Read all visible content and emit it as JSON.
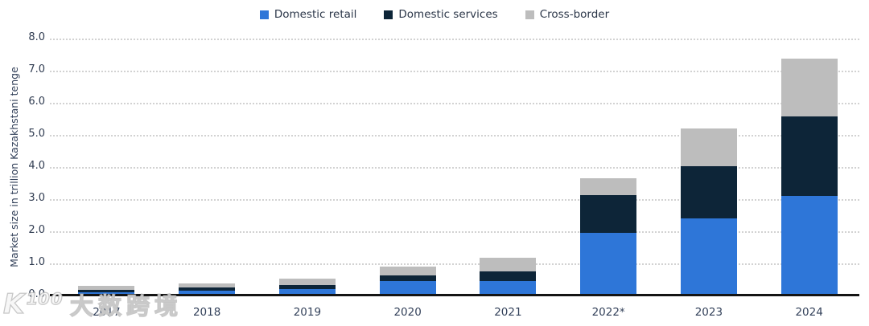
{
  "watermark": {
    "logo": "K¹⁰⁰",
    "text": "大数跨境"
  },
  "colors": {
    "retail_blue": "#2e76d8",
    "services_navy": "#0d2538",
    "crossborder_gray": "#bdbdbd",
    "axis_line": "#141414",
    "gridline": "#d2d2d2",
    "label_text": "#33415a"
  },
  "y_axis": {
    "title": "Market size in trillion Kazakhstani tenge",
    "ticks": [
      "8.0",
      "7.0",
      "6.0",
      "5.0",
      "4.0",
      "3.0",
      "2.0",
      "1.0",
      "0.0"
    ]
  },
  "chart_data": {
    "type": "bar",
    "stacked": true,
    "title": "",
    "xlabel": "",
    "ylabel": "Market size in trillion Kazakhstani tenge",
    "ylim": [
      0,
      8
    ],
    "ytick_step": 1,
    "grid": "dotted-horizontal",
    "legend_position": "top-center",
    "categories": [
      "2017",
      "2018",
      "2019",
      "2020",
      "2021",
      "2022*",
      "2023",
      "2024"
    ],
    "series": [
      {
        "name": "Domestic retail",
        "color": "#2e76d8",
        "values": [
          0.1,
          0.15,
          0.2,
          0.45,
          0.45,
          1.95,
          2.4,
          3.1
        ]
      },
      {
        "name": "Domestic services",
        "color": "#0d2538",
        "values": [
          0.08,
          0.1,
          0.12,
          0.18,
          0.31,
          1.18,
          1.62,
          2.48
        ]
      },
      {
        "name": "Cross-border",
        "color": "#bdbdbd",
        "values": [
          0.13,
          0.13,
          0.2,
          0.28,
          0.42,
          0.52,
          1.18,
          1.8
        ]
      }
    ],
    "totals": [
      0.31,
      0.38,
      0.52,
      0.91,
      1.18,
      3.65,
      5.2,
      7.38
    ]
  }
}
